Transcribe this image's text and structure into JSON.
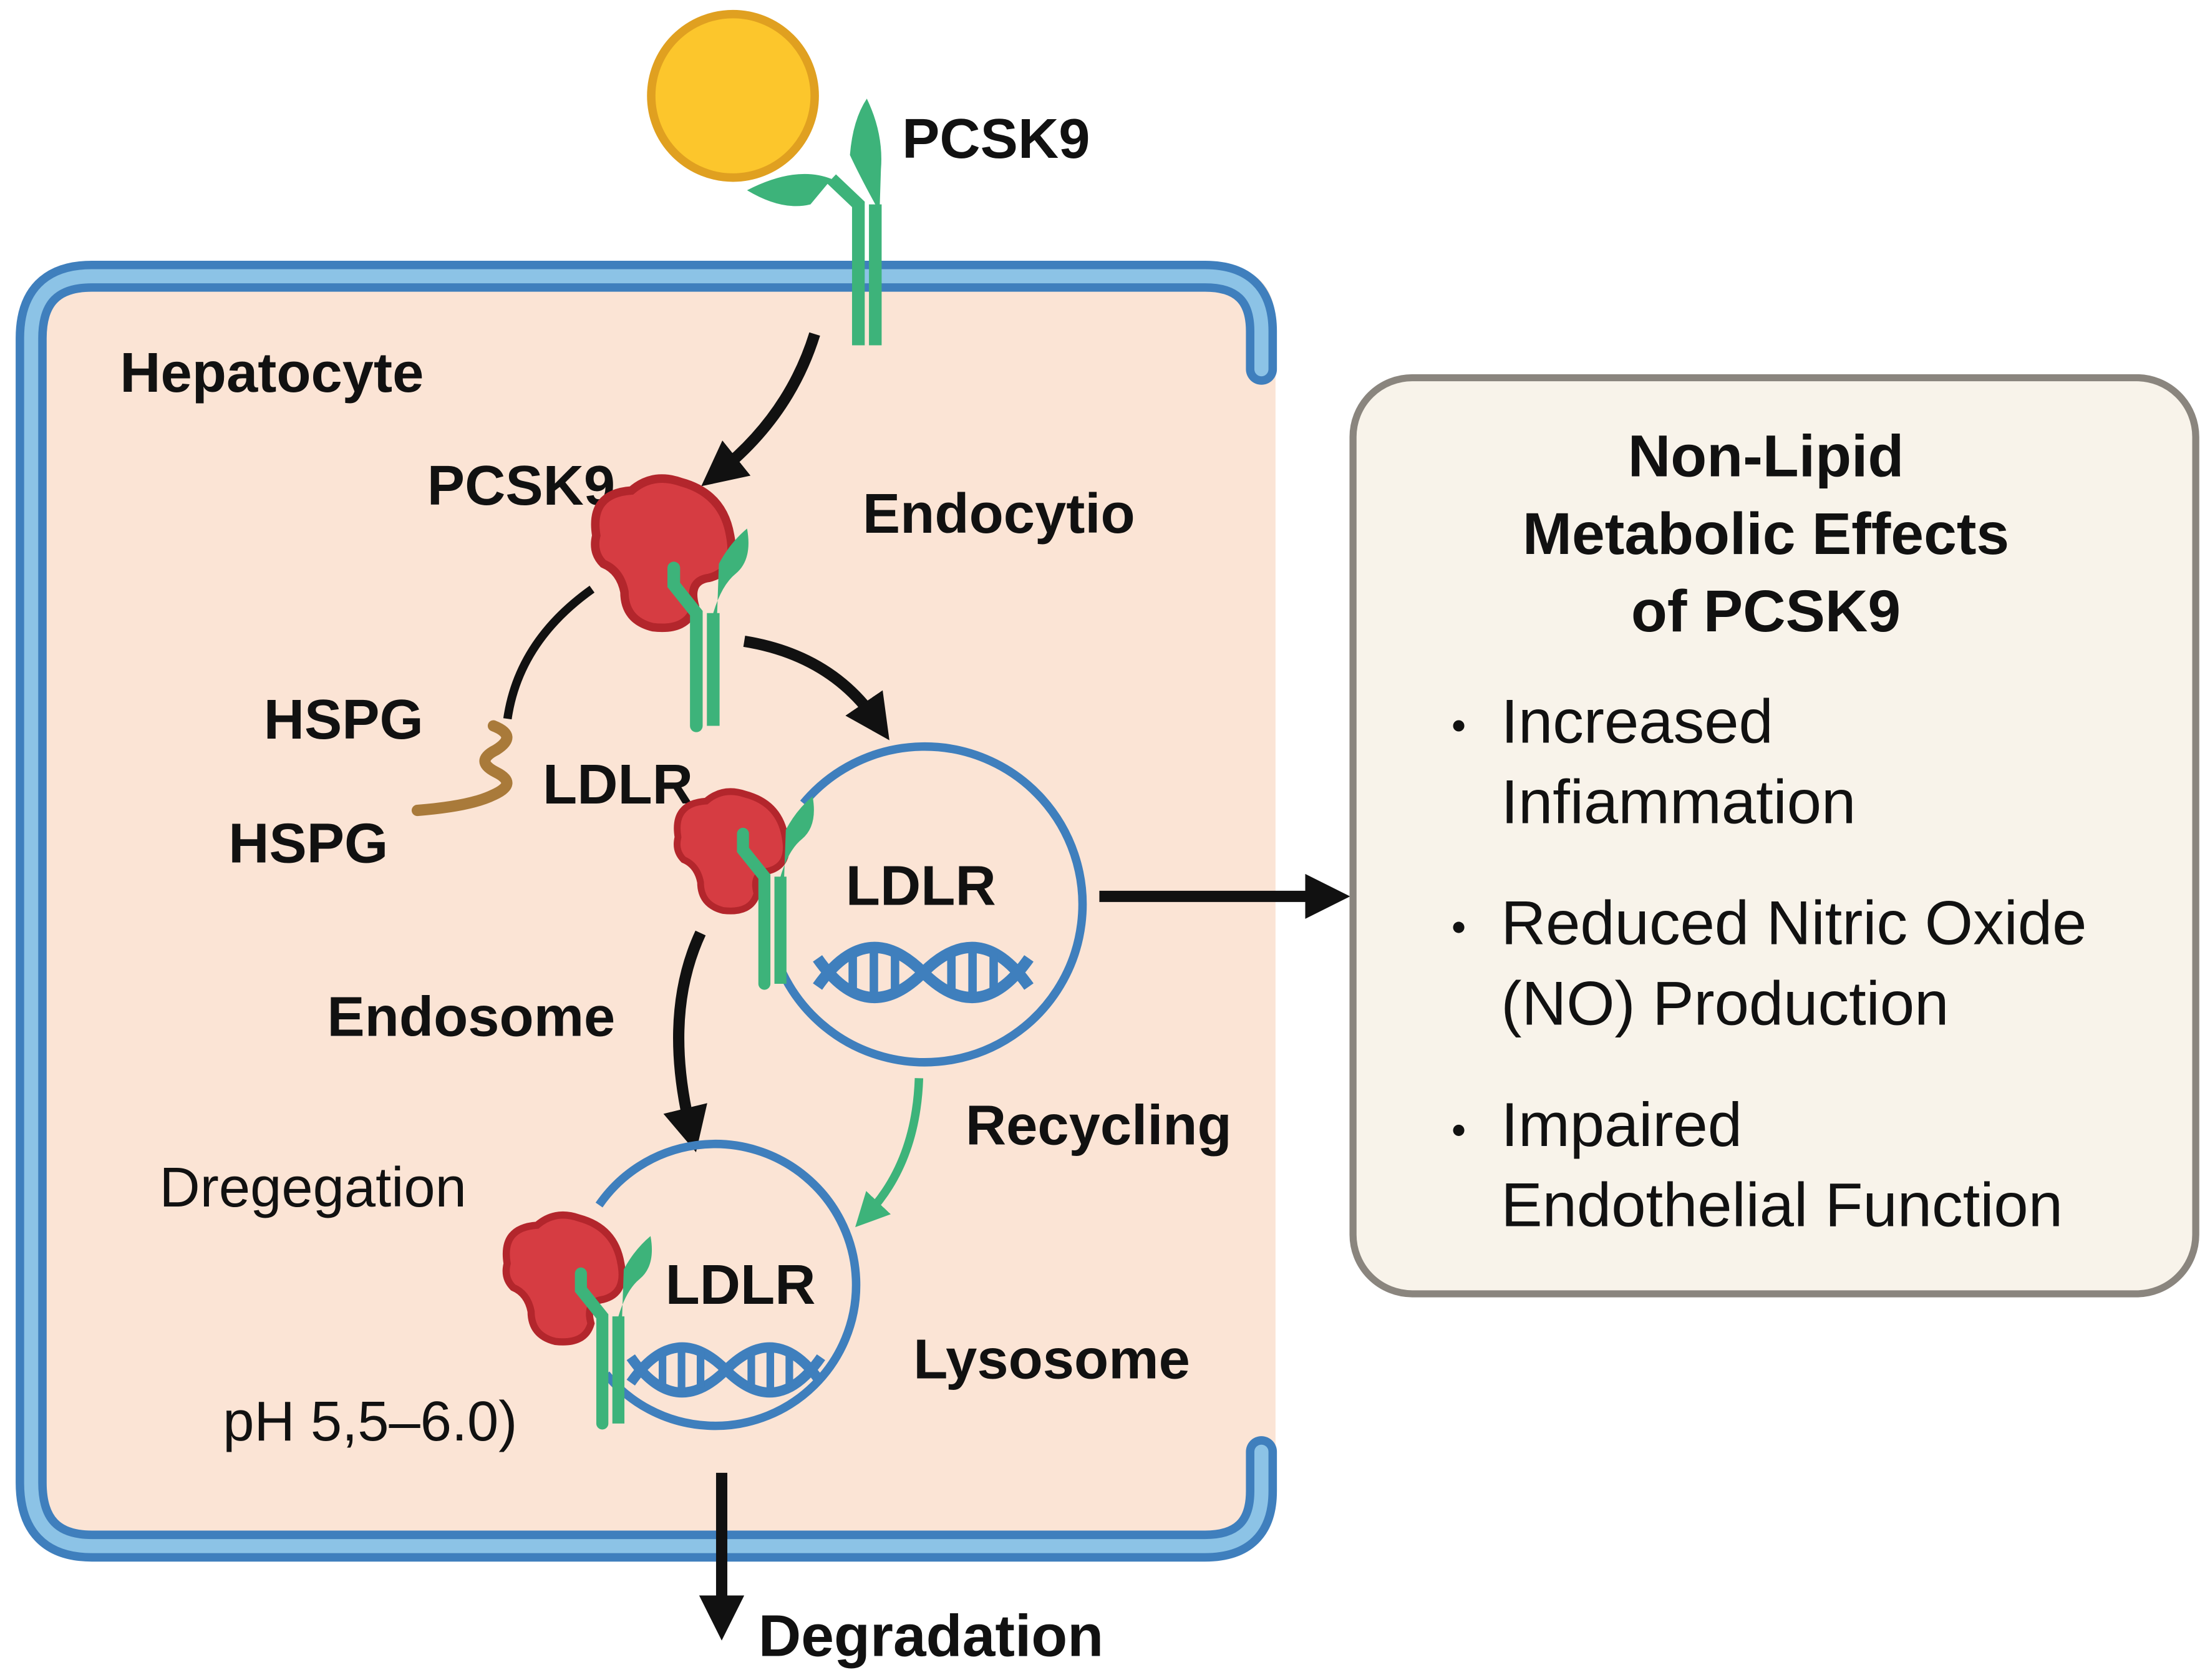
{
  "labels": {
    "pcsk9_top": "PCSK9",
    "hepatocyte": "Hepatocyte",
    "pcsk9_inner": "PCSK9",
    "endocytosis": "Endocytio",
    "hspg_1": "HSPG",
    "hspg_2": "HSPG",
    "ldlr_outside": "LDLR",
    "ldlr_endosome": "LDLR",
    "endosome": "Endosome",
    "recycling": "Recycling",
    "degregation": "Dregegation",
    "ldlr_lysosome": "LDLR",
    "lysosome": "Lysosome",
    "ph": "pH 5,5–6.0)",
    "degradation": "Degradation"
  },
  "effects_box": {
    "title_lines": [
      "Non-Lipid",
      "Metabolic  Effects",
      "of PCSK9"
    ],
    "bullets": [
      {
        "lines": [
          "Increased",
          "Infiammation"
        ]
      },
      {
        "lines": [
          "Reduced Nitric Oxide",
          "(NO) Production"
        ]
      },
      {
        "lines": [
          "Impaired",
          "Endothelial Function"
        ]
      }
    ]
  },
  "colors": {
    "membrane_dark": "#3f7fbd",
    "membrane_light": "#8cc3e6",
    "cytoplasm": "#fbe4d5",
    "pcsk9_protein": "#d03a3f",
    "ldlr_receptor": "#3db37a",
    "lipoprotein": "#fcc62c",
    "hspg": "#a97a3a",
    "box_fill": "#f8f3ea",
    "box_border": "#8a857e"
  }
}
